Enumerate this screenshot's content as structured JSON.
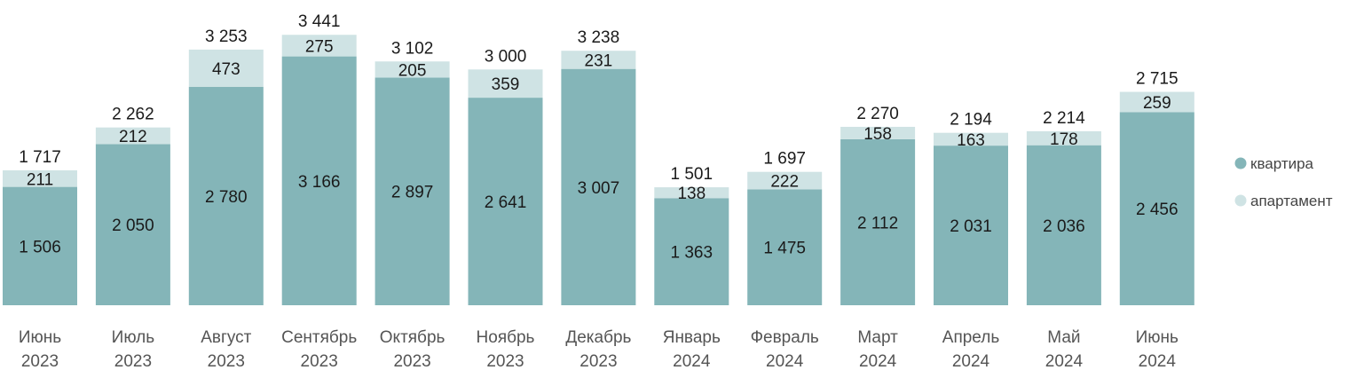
{
  "chart_data": {
    "type": "bar",
    "stacked": true,
    "categories": [
      [
        "Июнь",
        "2023"
      ],
      [
        "Июль",
        "2023"
      ],
      [
        "Август",
        "2023"
      ],
      [
        "Сентябрь",
        "2023"
      ],
      [
        "Октябрь",
        "2023"
      ],
      [
        "Ноябрь",
        "2023"
      ],
      [
        "Декабрь",
        "2023"
      ],
      [
        "Январь",
        "2024"
      ],
      [
        "Февраль",
        "2024"
      ],
      [
        "Март",
        "2024"
      ],
      [
        "Апрель",
        "2024"
      ],
      [
        "Май",
        "2024"
      ],
      [
        "Июнь",
        "2024"
      ]
    ],
    "series": [
      {
        "name": "квартира",
        "color": "#84b5b8",
        "values": [
          1506,
          2050,
          2780,
          3166,
          2897,
          2641,
          3007,
          1363,
          1475,
          2112,
          2031,
          2036,
          2456
        ]
      },
      {
        "name": "апартамент",
        "color": "#cfe3e4",
        "values": [
          211,
          212,
          473,
          275,
          205,
          359,
          231,
          138,
          222,
          158,
          163,
          178,
          259
        ]
      }
    ],
    "series_labels": [
      [
        "1 506",
        "2 050",
        "2 780",
        "3 166",
        "2 897",
        "2 641",
        "3 007",
        "1 363",
        "1 475",
        "2 112",
        "2 031",
        "2 036",
        "2 456"
      ],
      [
        "211",
        "212",
        "473",
        "275",
        "205",
        "359",
        "231",
        "138",
        "222",
        "158",
        "163",
        "178",
        "259"
      ]
    ],
    "total_labels": [
      "1 717",
      "2 262",
      "3 253",
      "3 441",
      "3 102",
      "3 000",
      "3 238",
      "1 501",
      "1 697",
      "2 270",
      "2 194",
      "2 214",
      "2 715"
    ],
    "ylim": [
      0,
      3500
    ],
    "grid": false,
    "legend": "right"
  }
}
